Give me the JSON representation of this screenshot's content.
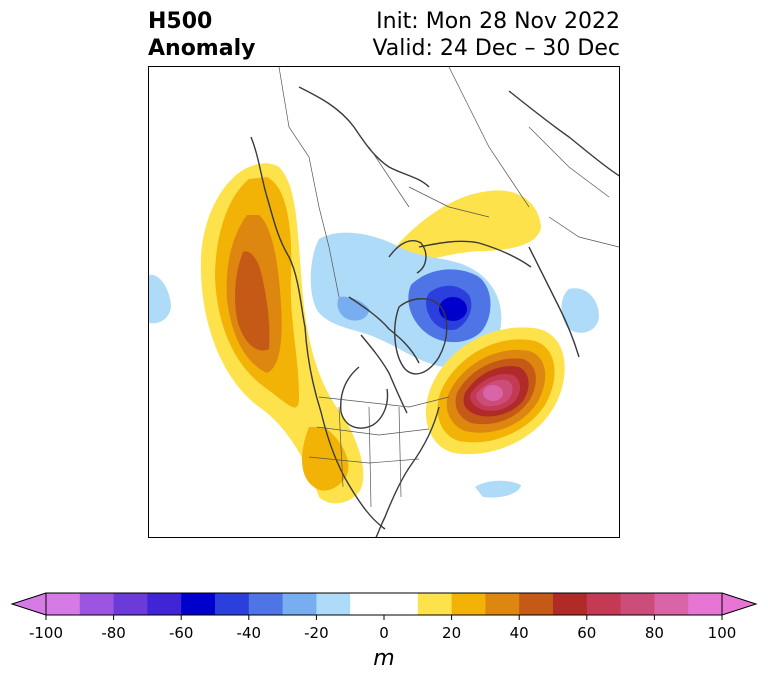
{
  "title": {
    "left_line1": "H500",
    "left_line2": "Anomaly",
    "right_line1": "Init: Mon 28 Nov 2022",
    "right_line2": "Valid: 24 Dec – 30 Dec"
  },
  "colorbar": {
    "unit": "m",
    "tick_labels": [
      "-100",
      "-80",
      "-60",
      "-40",
      "-20",
      "0",
      "20",
      "40",
      "60",
      "80",
      "100"
    ],
    "levels": [
      -100,
      -90,
      -80,
      -70,
      -60,
      -50,
      -40,
      -30,
      -20,
      -10,
      10,
      20,
      30,
      40,
      50,
      60,
      70,
      80,
      90,
      100
    ],
    "colors": [
      "#d67ae6",
      "#9b55e0",
      "#6c3ad8",
      "#3f25d5",
      "#0000cc",
      "#2a3fdb",
      "#4f74e6",
      "#78adf0",
      "#aedbf8",
      "#ffffff",
      "#fde24b",
      "#f2b206",
      "#dd8710",
      "#c55a16",
      "#b02a28",
      "#c43a55",
      "#cc4c7a",
      "#d965a8",
      "#e775d3"
    ],
    "under_color": "#d67ae6",
    "over_color": "#e775d3"
  }
}
